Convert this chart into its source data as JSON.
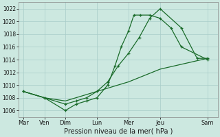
{
  "xlabel": "Pression niveau de la mer( hPa )",
  "bg_color": "#cce8e0",
  "grid_color": "#a8ccc8",
  "line_color": "#1a6b2a",
  "ylim": [
    1005,
    1023
  ],
  "xlim": [
    -0.15,
    6.15
  ],
  "x_ticks": [
    0,
    0.67,
    1.33,
    2.33,
    3.33,
    4.33,
    5.83
  ],
  "x_labels": [
    "Mar",
    "Ven",
    "Dim",
    "Lun",
    "Mer",
    "Jeu",
    "Sam"
  ],
  "yticks": [
    1006,
    1008,
    1010,
    1012,
    1014,
    1016,
    1018,
    1020,
    1022
  ],
  "line1_x": [
    0,
    0.67,
    1.33,
    1.67,
    2.0,
    2.33,
    2.67,
    2.9,
    3.1,
    3.33,
    3.5,
    3.7,
    4.0,
    4.33,
    4.67,
    5.0,
    5.83
  ],
  "line1_y": [
    1009,
    1008,
    1006,
    1007,
    1007.5,
    1008,
    1010,
    1013,
    1016,
    1018.5,
    1021,
    1021,
    1021,
    1020.5,
    1019,
    1016,
    1014
  ],
  "line2_x": [
    0,
    0.67,
    1.33,
    1.67,
    2.0,
    2.33,
    2.67,
    3.0,
    3.33,
    3.67,
    4.0,
    4.33,
    5.0,
    5.5,
    5.83
  ],
  "line2_y": [
    1009,
    1008,
    1007,
    1007.5,
    1008,
    1009,
    1010.5,
    1013,
    1015,
    1017.5,
    1020.5,
    1022,
    1019,
    1014.2,
    1014.2
  ],
  "line3_x": [
    0,
    0.67,
    1.33,
    2.33,
    3.33,
    4.33,
    5.83
  ],
  "line3_y": [
    1009,
    1008,
    1007.5,
    1009,
    1010.5,
    1012.5,
    1014.2
  ]
}
